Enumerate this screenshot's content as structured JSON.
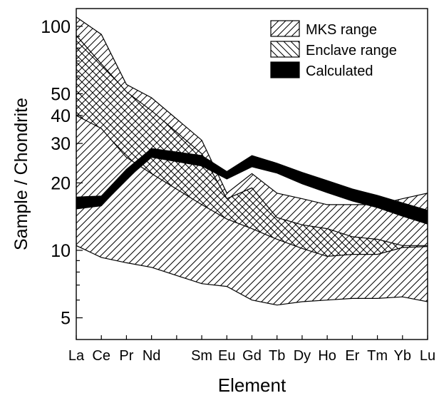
{
  "chart_data": {
    "type": "area",
    "title": "",
    "xlabel": "Element",
    "ylabel": "Sample / Chondrite",
    "yscale": "log",
    "ylim": [
      4,
      120
    ],
    "yticks": [
      5,
      10,
      20,
      30,
      40,
      50,
      100
    ],
    "categories": [
      "La",
      "Ce",
      "Pr",
      "Nd",
      "Sm",
      "Eu",
      "Gd",
      "Tb",
      "Dy",
      "Ho",
      "Er",
      "Tm",
      "Yb",
      "Lu"
    ],
    "grid": false,
    "legend_position": "top-right",
    "series": [
      {
        "name": "MKS range",
        "style": "hatch-forward",
        "color": "#000000",
        "x": [
          "La",
          "Ce",
          "Pr",
          "Nd",
          "Sm",
          "Eu",
          "Gd",
          "Tb",
          "Dy",
          "Ho",
          "Er",
          "Tm",
          "Yb",
          "Lu"
        ],
        "upper": [
          110,
          92,
          55,
          48,
          31,
          18,
          22,
          18,
          17,
          16,
          16,
          16,
          17,
          18
        ],
        "lower": [
          10.5,
          9.3,
          8.8,
          8.4,
          7.1,
          6.9,
          6.0,
          5.7,
          5.9,
          6.0,
          6.1,
          6.1,
          6.2,
          5.9
        ]
      },
      {
        "name": "Enclave range",
        "style": "hatch-back",
        "color": "#000000",
        "x": [
          "La",
          "Ce",
          "Pr",
          "Nd",
          "Sm",
          "Eu",
          "Gd",
          "Tb",
          "Dy",
          "Ho",
          "Er",
          "Tm",
          "Yb",
          "Lu"
        ],
        "upper": [
          91,
          68,
          51,
          42,
          27,
          17,
          19,
          14,
          13,
          12.5,
          11.5,
          11.2,
          10.5,
          10.5
        ],
        "lower": [
          40,
          35,
          26,
          22,
          16,
          13.8,
          12.5,
          11.2,
          10.2,
          9.4,
          9.6,
          9.6,
          10.3,
          10.4
        ]
      },
      {
        "name": "Calculated",
        "style": "solid",
        "color": "#000000",
        "x": [
          "La",
          "Ce",
          "Pr",
          "Nd",
          "Sm",
          "Eu",
          "Gd",
          "Tb",
          "Dy",
          "Ho",
          "Er",
          "Tm",
          "Yb",
          "Lu"
        ],
        "upper": [
          17.3,
          17.5,
          23,
          28.5,
          26.5,
          22.5,
          26.5,
          24.5,
          22.3,
          20.5,
          18.8,
          17.6,
          16.3,
          15.1
        ],
        "lower": [
          15.3,
          15.8,
          20.8,
          26.0,
          23.8,
          20.8,
          23.6,
          22.1,
          19.8,
          18.1,
          16.6,
          15.5,
          14.2,
          13.1
        ]
      }
    ]
  }
}
